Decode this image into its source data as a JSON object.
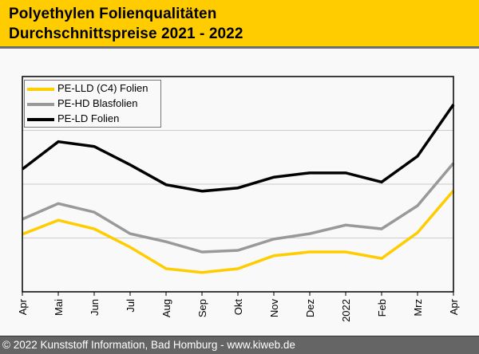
{
  "header": {
    "title_line1": "Polyethylen Folienqualitäten",
    "title_line2": "Durchschnittspreise 2021 - 2022"
  },
  "footer": {
    "text": "© 2022 Kunststoff Information, Bad Homburg - www.kiweb.de"
  },
  "colors": {
    "header_bg": "#ffcc00",
    "footer_bg": "#656565",
    "pe_lld": "#ffcc00",
    "pe_hd": "#999999",
    "pe_ld": "#000000"
  },
  "chart_data": {
    "type": "line",
    "title": "Polyethylen Folienqualitäten Durchschnittspreise 2021 - 2022",
    "xlabel": "",
    "ylabel": "",
    "y_axis_labels_shown": false,
    "y_units": "relative index (no scale printed; gridlines at 1, 2, 3)",
    "ylim": [
      0,
      4
    ],
    "grid": "horizontal",
    "legend_position": "top-left",
    "categories": [
      "Apr",
      "Mai",
      "Jun",
      "Jul",
      "Aug",
      "Sep",
      "Okt",
      "Nov",
      "Dez",
      "2022",
      "Feb",
      "Mrz",
      "Apr"
    ],
    "series": [
      {
        "name": "PE-LLD (C4) Folien",
        "color": "#ffcc00",
        "values": [
          1.07,
          1.33,
          1.17,
          0.83,
          0.43,
          0.36,
          0.43,
          0.67,
          0.74,
          0.74,
          0.62,
          1.1,
          1.88
        ]
      },
      {
        "name": "PE-HD Blasfolien",
        "color": "#999999",
        "values": [
          1.35,
          1.64,
          1.48,
          1.08,
          0.93,
          0.74,
          0.77,
          0.98,
          1.08,
          1.24,
          1.17,
          1.6,
          2.39
        ]
      },
      {
        "name": "PE-LD Folien",
        "color": "#000000",
        "values": [
          2.28,
          2.79,
          2.7,
          2.36,
          1.99,
          1.87,
          1.93,
          2.13,
          2.21,
          2.21,
          2.04,
          2.52,
          3.48
        ]
      }
    ]
  }
}
